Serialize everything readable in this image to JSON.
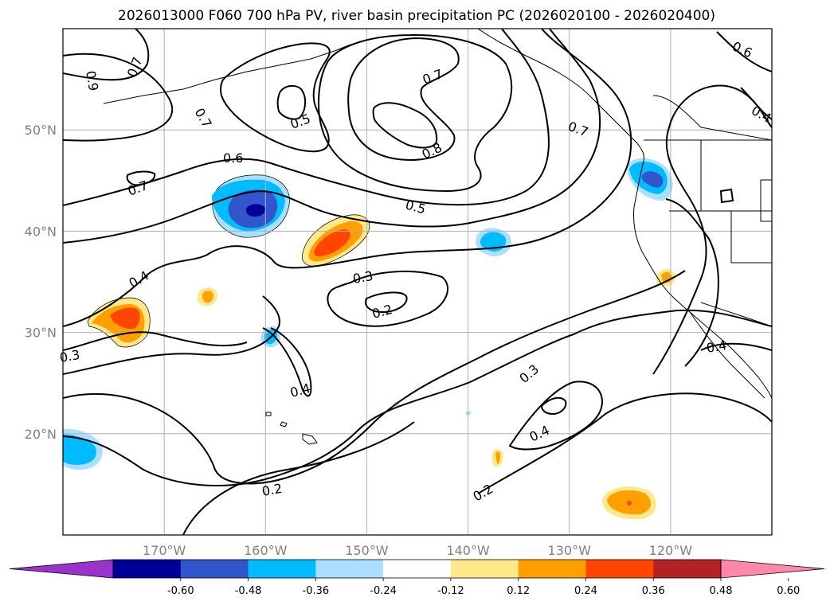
{
  "title": "2026013000 F060 700 hPa PV, river basin precipitation PC (2026020100 - 2026020400)",
  "map": {
    "projection": "equirectangular",
    "lon_range": [
      -180,
      -110
    ],
    "lat_range": [
      10,
      60
    ],
    "lat_ticks": [
      {
        "value": 50,
        "label": "50°N"
      },
      {
        "value": 40,
        "label": "40°N"
      },
      {
        "value": 30,
        "label": "30°N"
      },
      {
        "value": 20,
        "label": "20°N"
      }
    ],
    "lon_ticks": [
      {
        "value": -170,
        "label": "170°W"
      },
      {
        "value": -160,
        "label": "160°W"
      },
      {
        "value": -150,
        "label": "150°W"
      },
      {
        "value": -140,
        "label": "140°W"
      },
      {
        "value": -130,
        "label": "130°W"
      },
      {
        "value": -120,
        "label": "120°W"
      }
    ]
  },
  "contour_labels": [
    "0.9",
    "0.7",
    "0.7",
    "0.5",
    "0.7",
    "0.8",
    "0.6",
    "0.6",
    "0.4",
    "0.7",
    "0.5",
    "0.7",
    "0.4",
    "0.3",
    "0.2",
    "0.3",
    "0.4",
    "0.3",
    "0.4",
    "0.2",
    "0.2",
    "0.4"
  ],
  "colorbar": {
    "colors": [
      "#9933cc",
      "#000099",
      "#3355cc",
      "#00bbff",
      "#aadfff",
      "#ffffff",
      "#ffe88a",
      "#ffa000",
      "#ff4500",
      "#b22222",
      "#ff88aa"
    ],
    "ticks": [
      "-0.60",
      "-0.48",
      "-0.36",
      "-0.24",
      "-0.12",
      "0.12",
      "0.24",
      "0.36",
      "0.48",
      "0.60"
    ]
  },
  "colors": {
    "contour": "#000000",
    "grid": "#b0b0b0",
    "axis_label": "#808080"
  }
}
